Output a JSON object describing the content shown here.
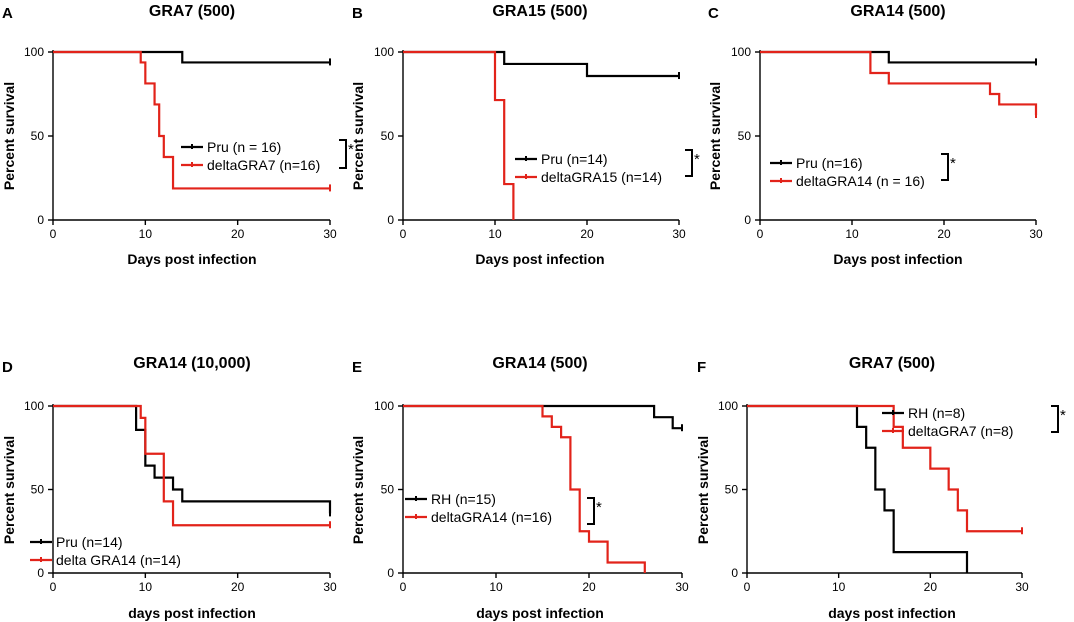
{
  "figure": {
    "panels": [
      {
        "letter": "A",
        "chart_data": {
          "type": "line",
          "subtype": "kaplan-meier",
          "title": "GRA7 (500)",
          "xlabel": "Days post infection",
          "ylabel": "Percent survival",
          "xlim": [
            0,
            30
          ],
          "ylim": [
            0,
            100
          ],
          "xticks": [
            0,
            10,
            20,
            30
          ],
          "yticks": [
            0,
            50,
            100
          ],
          "legend_position": "center-right",
          "significance": "*",
          "series": [
            {
              "name": "Pru (n = 16)",
              "color": "#000000",
              "x": [
                0,
                14,
                30
              ],
              "y": [
                100,
                93.8,
                93.8
              ]
            },
            {
              "name": "deltaGRA7 (n=16)",
              "color": "#e2231a",
              "x": [
                0,
                9,
                9.5,
                10,
                11,
                11.5,
                12,
                13,
                30
              ],
              "y": [
                100,
                100,
                93.8,
                81.3,
                68.8,
                50,
                37.5,
                18.8,
                18.8
              ]
            }
          ]
        }
      },
      {
        "letter": "B",
        "chart_data": {
          "type": "line",
          "subtype": "kaplan-meier",
          "title": "GRA15 (500)",
          "xlabel": "Days post infection",
          "ylabel": "Percent survival",
          "xlim": [
            0,
            30
          ],
          "ylim": [
            0,
            100
          ],
          "xticks": [
            0,
            10,
            20,
            30
          ],
          "yticks": [
            0,
            50,
            100
          ],
          "legend_position": "center-right",
          "significance": "*",
          "series": [
            {
              "name": "Pru (n=14)",
              "color": "#000000",
              "x": [
                0,
                11,
                20,
                30
              ],
              "y": [
                100,
                92.9,
                85.7,
                85.7
              ]
            },
            {
              "name": "deltaGRA15 (n=14)",
              "color": "#e2231a",
              "x": [
                0,
                10,
                11,
                12
              ],
              "y": [
                100,
                71.4,
                21.4,
                0
              ]
            }
          ]
        }
      },
      {
        "letter": "C",
        "chart_data": {
          "type": "line",
          "subtype": "kaplan-meier",
          "title": "GRA14 (500)",
          "xlabel": "Days post infection",
          "ylabel": "Percent survival",
          "xlim": [
            0,
            30
          ],
          "ylim": [
            0,
            100
          ],
          "xticks": [
            0,
            10,
            20,
            30
          ],
          "yticks": [
            0,
            50,
            100
          ],
          "legend_position": "center",
          "significance": "*",
          "series": [
            {
              "name": "Pru (n=16)",
              "color": "#000000",
              "x": [
                0,
                14,
                30
              ],
              "y": [
                100,
                93.8,
                93.8
              ]
            },
            {
              "name": "deltaGRA14 (n = 16)",
              "color": "#e2231a",
              "x": [
                0,
                12,
                14,
                25,
                26,
                30
              ],
              "y": [
                100,
                87.5,
                81.3,
                75,
                68.8,
                62.5
              ]
            }
          ]
        }
      },
      {
        "letter": "D",
        "chart_data": {
          "type": "line",
          "subtype": "kaplan-meier",
          "title": "GRA14 (10,000)",
          "xlabel": "days post infection",
          "ylabel": "Percent survival",
          "xlim": [
            0,
            30
          ],
          "ylim": [
            0,
            100
          ],
          "xticks": [
            0,
            10,
            20,
            30
          ],
          "yticks": [
            0,
            50,
            100
          ],
          "legend_position": "bottom-left",
          "significance": "",
          "series": [
            {
              "name": "Pru (n=14)",
              "color": "#000000",
              "x": [
                0,
                9,
                10,
                11,
                13,
                14,
                30
              ],
              "y": [
                100,
                85.7,
                64.3,
                57.1,
                50,
                42.9,
                35.7
              ]
            },
            {
              "name": "delta GRA14 (n=14)",
              "color": "#e2231a",
              "x": [
                0,
                9.5,
                10,
                12,
                13,
                30
              ],
              "y": [
                100,
                92.9,
                71.4,
                42.9,
                28.6,
                28.6
              ]
            }
          ]
        }
      },
      {
        "letter": "E",
        "chart_data": {
          "type": "line",
          "subtype": "kaplan-meier",
          "title": "GRA14 (500)",
          "xlabel": "days post infection",
          "ylabel": "Percent survival",
          "xlim": [
            0,
            30
          ],
          "ylim": [
            0,
            100
          ],
          "xticks": [
            0,
            10,
            20,
            30
          ],
          "yticks": [
            0,
            50,
            100
          ],
          "legend_position": "bottom-center",
          "significance": "*",
          "series": [
            {
              "name": "RH (n=15)",
              "color": "#000000",
              "x": [
                0,
                27,
                29,
                30
              ],
              "y": [
                100,
                93.3,
                86.7,
                86.7
              ]
            },
            {
              "name": "deltaGRA14 (n=16)",
              "color": "#e2231a",
              "x": [
                0,
                15,
                16,
                17,
                18,
                19,
                20,
                22,
                26
              ],
              "y": [
                100,
                93.8,
                87.5,
                81.3,
                50,
                25,
                18.8,
                6.3,
                0
              ]
            }
          ]
        }
      },
      {
        "letter": "F",
        "chart_data": {
          "type": "line",
          "subtype": "kaplan-meier",
          "title": "GRA7 (500)",
          "xlabel": "days post infection",
          "ylabel": "Percent survival",
          "xlim": [
            0,
            30
          ],
          "ylim": [
            0,
            100
          ],
          "xticks": [
            0,
            10,
            20,
            30
          ],
          "yticks": [
            0,
            50,
            100
          ],
          "legend_position": "top-right",
          "significance": "*",
          "series": [
            {
              "name": "RH (n=8)",
              "color": "#000000",
              "x": [
                0,
                12,
                13,
                14,
                15,
                16,
                24
              ],
              "y": [
                100,
                87.5,
                75,
                50,
                37.5,
                12.5,
                0
              ]
            },
            {
              "name": "deltaGRA7 (n=8)",
              "color": "#e2231a",
              "x": [
                0,
                16,
                17,
                20,
                22,
                23,
                24,
                30
              ],
              "y": [
                100,
                87.5,
                75,
                62.5,
                50,
                37.5,
                25,
                25
              ]
            }
          ]
        }
      }
    ]
  }
}
